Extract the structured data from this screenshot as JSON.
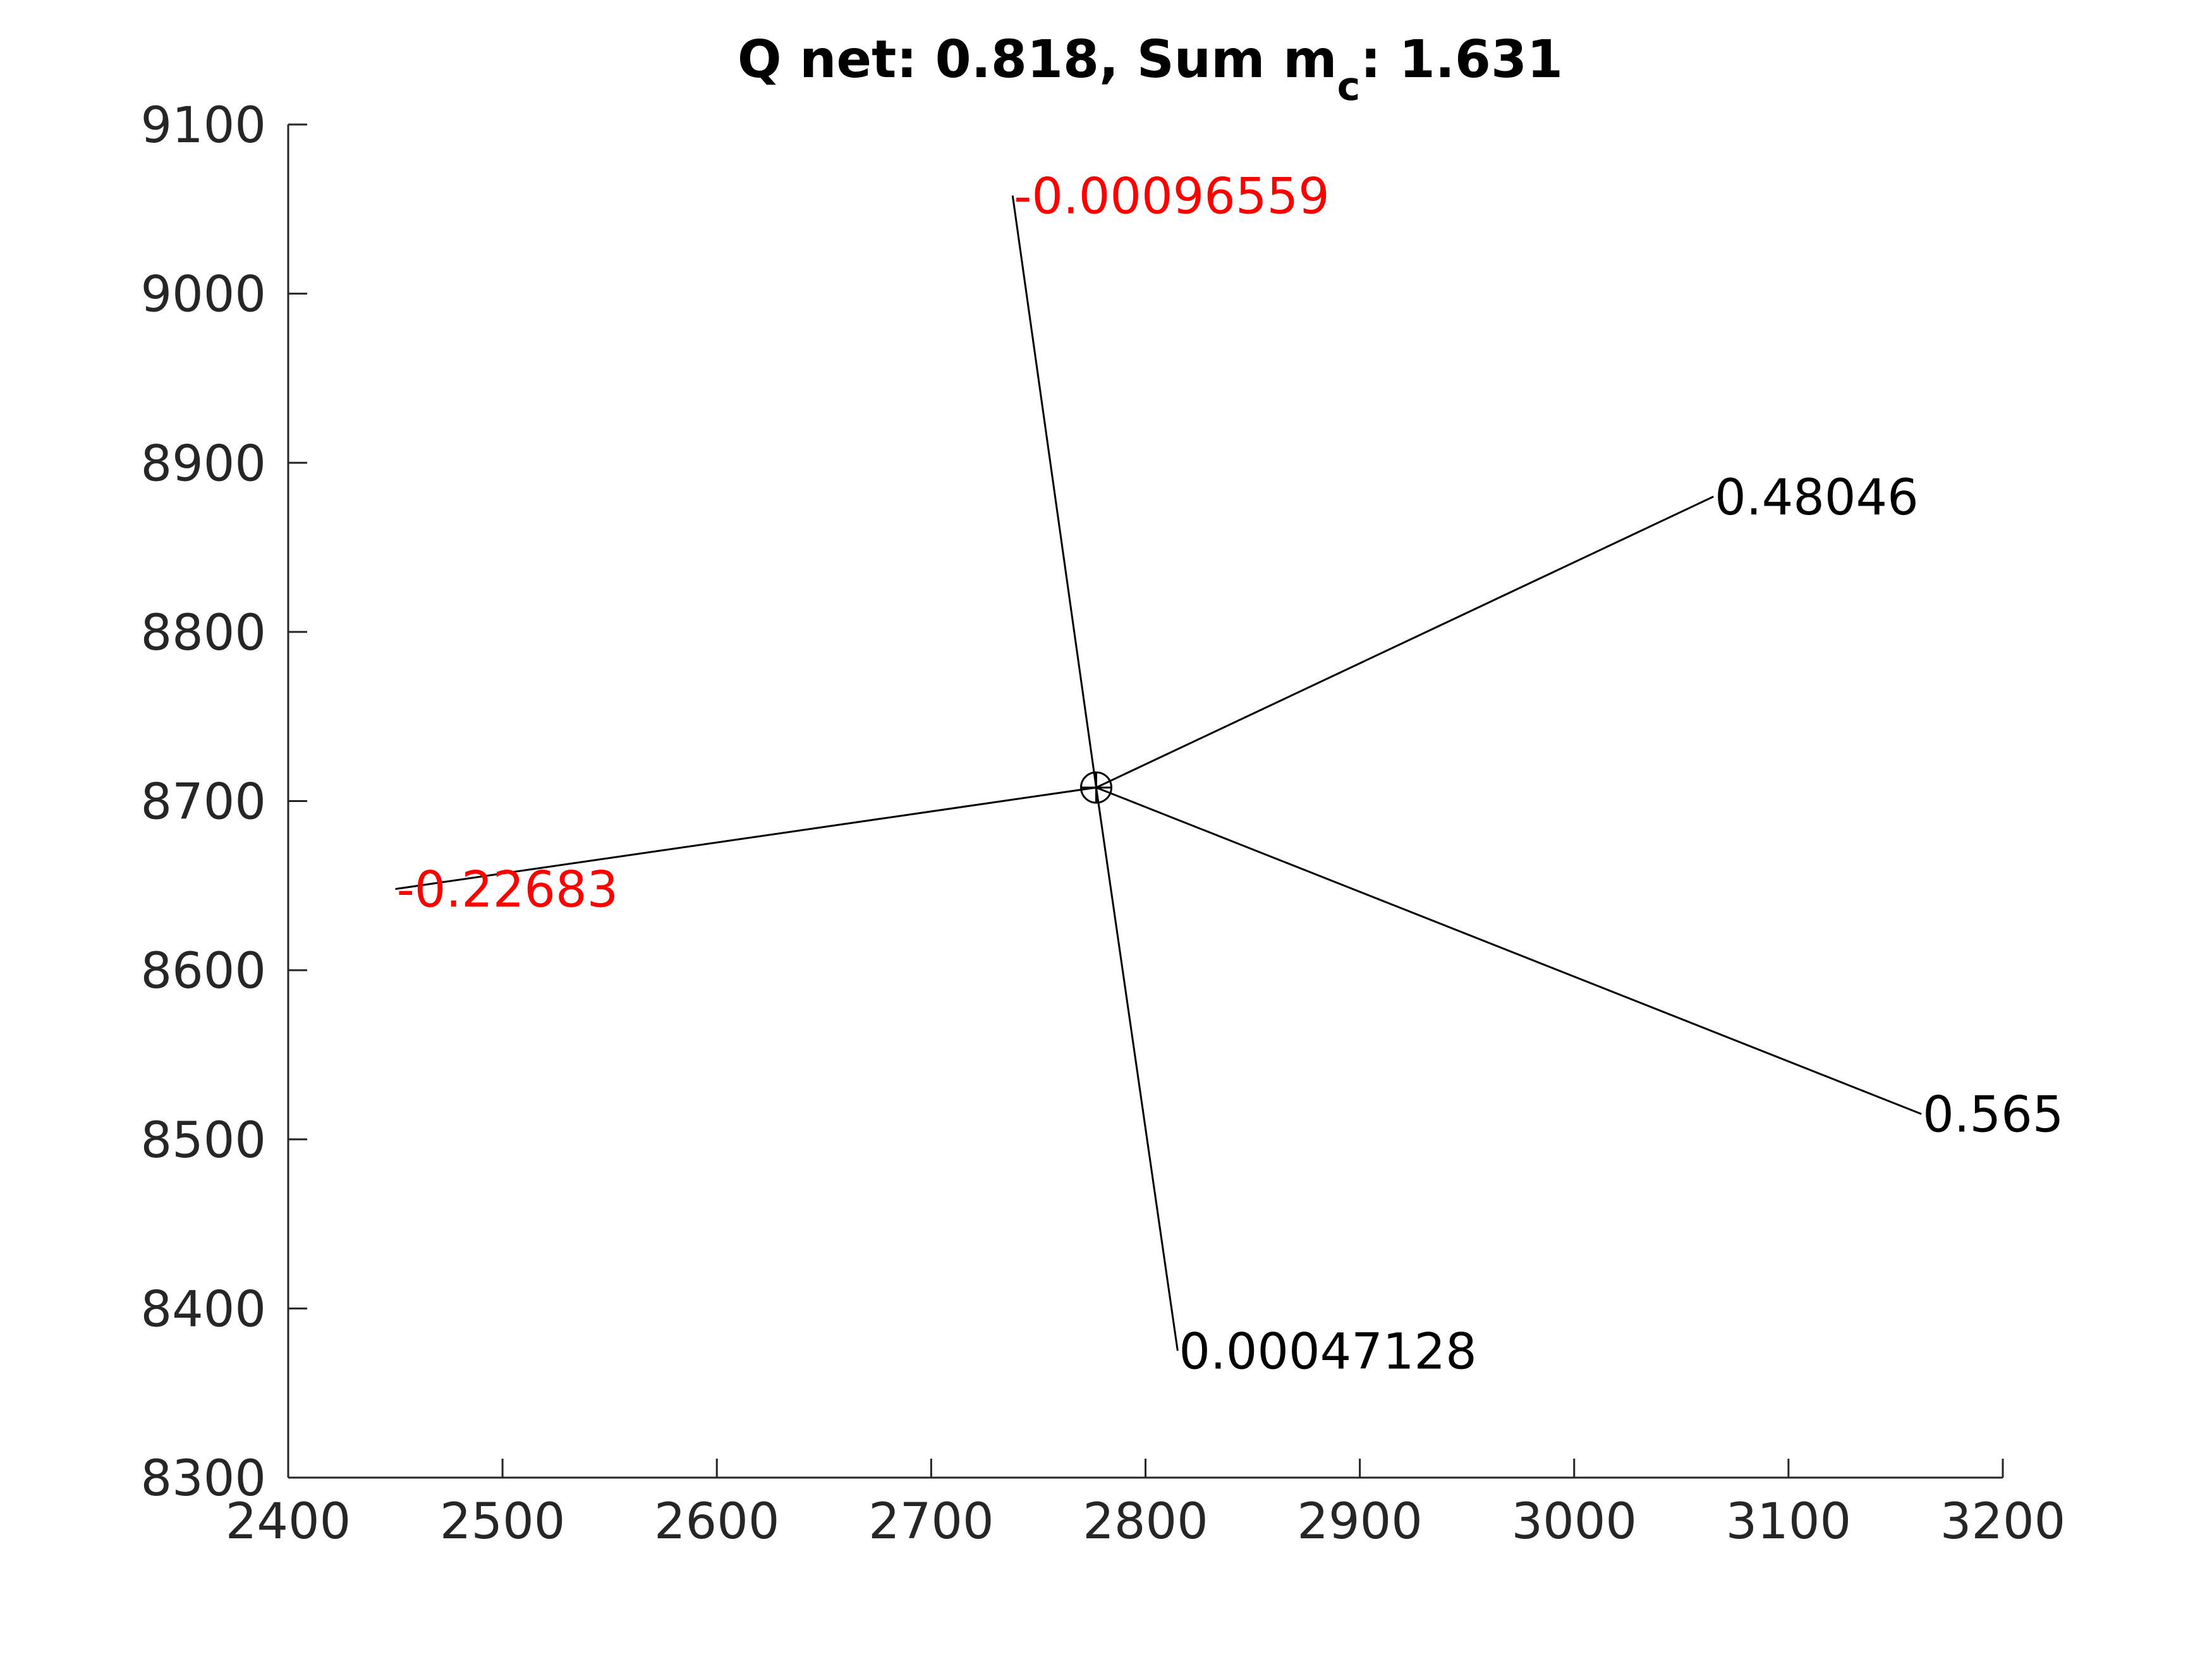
{
  "chart_data": {
    "type": "line",
    "title": {
      "prefix": "Q net: 0.818, Sum m",
      "subscript": "c",
      "suffix": ": 1.631"
    },
    "xlabel": "",
    "ylabel": "",
    "xlim": [
      2400,
      3200
    ],
    "ylim": [
      8300,
      9100
    ],
    "xticks": [
      2400,
      2500,
      2600,
      2700,
      2800,
      2900,
      3000,
      3100,
      3200
    ],
    "yticks": [
      8300,
      8400,
      8500,
      8600,
      8700,
      8800,
      8900,
      9000,
      9100
    ],
    "grid": false,
    "center": {
      "x": 2777,
      "y": 8708,
      "marker": "circle-plus"
    },
    "spokes": [
      {
        "x": 2738,
        "y": 9058,
        "label": "-0.00096559",
        "color": "#ff0000"
      },
      {
        "x": 3065,
        "y": 8880,
        "label": "0.48046",
        "color": "#000000"
      },
      {
        "x": 2450,
        "y": 8648,
        "label": "-0.22683",
        "color": "#ff0000"
      },
      {
        "x": 3162,
        "y": 8515,
        "label": "0.565",
        "color": "#000000"
      },
      {
        "x": 2815,
        "y": 8375,
        "label": "0.00047128",
        "color": "#000000"
      }
    ]
  },
  "colors": {
    "axis": "#262626",
    "line": "#000000",
    "negative_label": "#ff0000",
    "positive_label": "#000000"
  }
}
